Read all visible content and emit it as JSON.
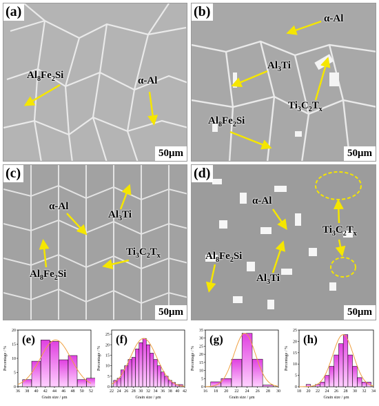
{
  "panels": [
    {
      "label": "(a)",
      "scale": "50μm"
    },
    {
      "label": "(b)",
      "scale": "50μm"
    },
    {
      "label": "(c)",
      "scale": "50μm"
    },
    {
      "label": "(d)",
      "scale": "50μm"
    }
  ],
  "annotations": {
    "a_alfesi": {
      "main": "Al",
      "s1": "8",
      "m2": "Fe",
      "s2": "2",
      "m3": "Si"
    },
    "a_alpha": "α-Al",
    "b_alpha": "α-Al",
    "b_al3ti": {
      "main": "Al",
      "s1": "3",
      "m2": "Ti"
    },
    "b_tic": {
      "main": "Ti",
      "s1": "3",
      "m2": "C",
      "s2": "2",
      "m3": "T",
      "s3": "x"
    },
    "b_alfesi": {
      "main": "Al",
      "s1": "8",
      "m2": "Fe",
      "s2": "2",
      "m3": "Si"
    },
    "c_alpha": "α-Al",
    "c_al3ti": {
      "main": "Al",
      "s1": "3",
      "m2": "Ti"
    },
    "c_tic": {
      "main": "Ti",
      "s1": "3",
      "m2": "C",
      "s2": "2",
      "m3": "T",
      "s3": "x"
    },
    "c_alfesi": {
      "main": "Al",
      "s1": "8",
      "m2": "Fe",
      "s2": "2",
      "m3": "Si"
    },
    "d_alpha": "α-Al",
    "d_tic": {
      "main": "Ti",
      "s1": "3",
      "m2": "C",
      "s2": "2",
      "m3": "T",
      "s3": "x"
    },
    "d_alfesi": {
      "main": "Al",
      "s1": "8",
      "m2": "Fe",
      "s2": "2",
      "m3": "Si"
    },
    "d_al3ti": {
      "main": "Al",
      "s1": "3",
      "m2": "Ti"
    }
  },
  "colors": {
    "arrow": "#f5e600",
    "bar": "#e040e0",
    "bar_light": "#ffd0ff",
    "fit": "#f0a040"
  },
  "chart_data": [
    {
      "type": "bar",
      "label": "(e)",
      "xlabel": "Grain size / μm",
      "ylabel": "Percentage / %",
      "x_ticks": [
        "36",
        "38",
        "40",
        "42",
        "44",
        "46",
        "48",
        "50",
        "52"
      ],
      "y_ticks": [
        "0",
        "5",
        "10",
        "15",
        "20"
      ],
      "ylim": [
        0,
        20
      ],
      "categories": [
        38,
        40,
        42,
        44,
        46,
        48,
        50,
        52
      ],
      "values": [
        2.5,
        9,
        16.5,
        16,
        9.5,
        11,
        2.5,
        3
      ]
    },
    {
      "type": "bar",
      "label": "(f)",
      "xlabel": "Grain size / μm",
      "ylabel": "Percentage / %",
      "x_ticks": [
        "22",
        "24",
        "26",
        "28",
        "30",
        "32",
        "34",
        "36",
        "38",
        "40",
        "42"
      ],
      "y_ticks": [
        "0",
        "5",
        "10",
        "15",
        "20",
        "25"
      ],
      "ylim": [
        0,
        27
      ],
      "categories": [
        23,
        24,
        25,
        26,
        27,
        28,
        29,
        30,
        31,
        32,
        33,
        34,
        35,
        36,
        37,
        38,
        39,
        40,
        41
      ],
      "values": [
        3,
        4,
        8,
        10,
        13,
        14,
        18,
        21,
        23,
        20,
        16,
        13,
        10,
        7,
        5,
        3,
        2,
        1,
        1
      ]
    },
    {
      "type": "bar",
      "label": "(g)",
      "xlabel": "Grain size / μm",
      "ylabel": "Percentage / %",
      "x_ticks": [
        "16",
        "18",
        "20",
        "22",
        "24",
        "26",
        "28",
        "30"
      ],
      "y_ticks": [
        "0",
        "5",
        "10",
        "15",
        "20",
        "25",
        "30",
        "35"
      ],
      "ylim": [
        0,
        35
      ],
      "categories": [
        18,
        20,
        22,
        24,
        26,
        28
      ],
      "values": [
        3,
        5,
        17,
        33,
        17,
        1
      ]
    },
    {
      "type": "bar",
      "label": "(h)",
      "xlabel": "Grain size / μm",
      "ylabel": "Percentage / %",
      "x_ticks": [
        "18",
        "20",
        "22",
        "24",
        "26",
        "28",
        "30",
        "32",
        "34"
      ],
      "y_ticks": [
        "0",
        "5",
        "10",
        "15",
        "20",
        "25"
      ],
      "ylim": [
        0,
        25
      ],
      "categories": [
        20,
        22,
        23,
        24,
        25,
        26,
        27,
        28,
        29,
        30,
        31,
        32,
        33
      ],
      "values": [
        1,
        1,
        2,
        5,
        9,
        14,
        19,
        23,
        14,
        9,
        4,
        2,
        2
      ]
    }
  ]
}
